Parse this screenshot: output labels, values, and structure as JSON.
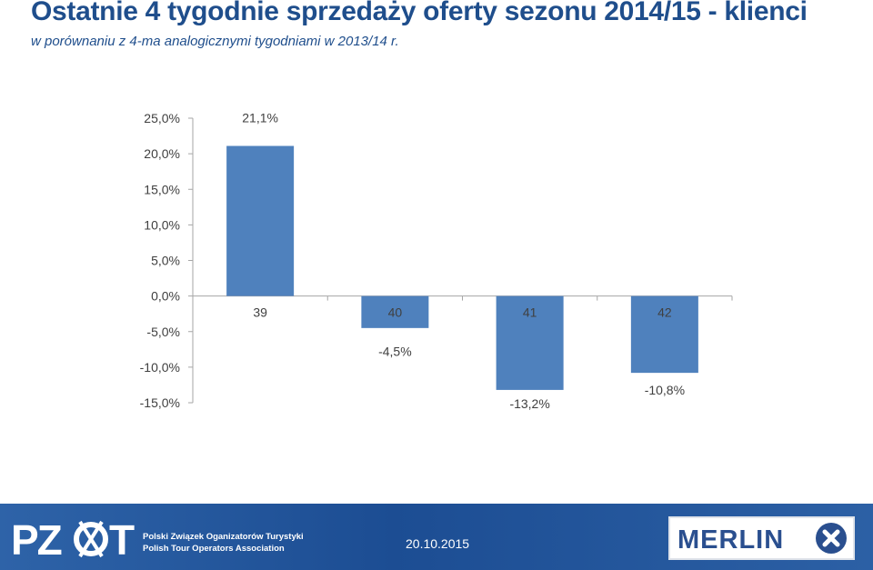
{
  "header": {
    "title": "Ostatnie 4 tygodnie sprzedaży oferty sezonu 2014/15 - klienci",
    "subtitle": "w porównaniu z 4-ma analogicznymi tygodniami w 2013/14 r."
  },
  "chart_data": {
    "type": "bar",
    "categories": [
      "39",
      "40",
      "41",
      "42"
    ],
    "values": [
      21.1,
      -4.5,
      -13.2,
      -10.8
    ],
    "data_labels": [
      "21,1%",
      "-4,5%",
      "-13,2%",
      "-10,8%"
    ],
    "yticks": [
      "25,0%",
      "20,0%",
      "15,0%",
      "10,0%",
      "5,0%",
      "0,0%",
      "-5,0%",
      "-10,0%",
      "-15,0%"
    ],
    "ylim": [
      -15,
      25
    ],
    "bar_color": "#4f81bd",
    "grid": false,
    "legend": "none"
  },
  "footer": {
    "logo_text": "PZOT",
    "org_name_pl": "Polski Związek Oganizatorów Turystyki",
    "org_name_en": "Polish Tour Operators Association",
    "date": "20.10.2015",
    "partner_logo": "MERLIN",
    "bar_color": "#2a5ca3"
  }
}
